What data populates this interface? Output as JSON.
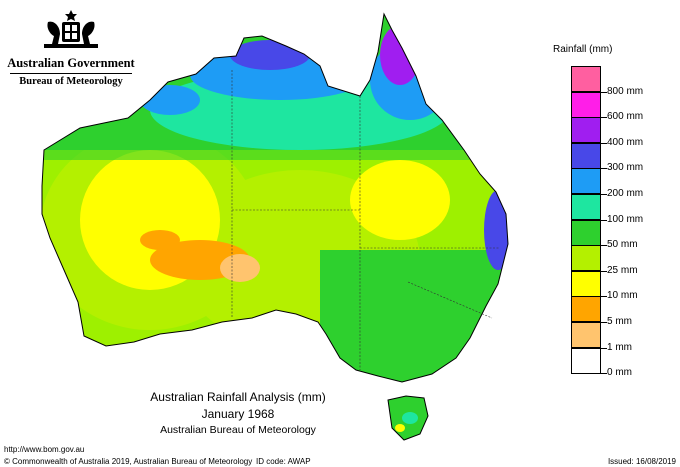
{
  "header": {
    "government": "Australian Government",
    "bureau": "Bureau of Meteorology"
  },
  "legend": {
    "title": "Rainfall (mm)",
    "bins": [
      {
        "label": "",
        "color": "#ff5fa0"
      },
      {
        "label": "800 mm",
        "color": "#ff1ee8"
      },
      {
        "label": "600 mm",
        "color": "#a01ef0"
      },
      {
        "label": "400 mm",
        "color": "#4848e8"
      },
      {
        "label": "300 mm",
        "color": "#1e9cf5"
      },
      {
        "label": "200 mm",
        "color": "#1ee6a0"
      },
      {
        "label": "100 mm",
        "color": "#2ed02e"
      },
      {
        "label": "50 mm",
        "color": "#b4f000"
      },
      {
        "label": "25 mm",
        "color": "#ffff00"
      },
      {
        "label": "10 mm",
        "color": "#ffa500"
      },
      {
        "label": "5 mm",
        "color": "#ffc46e"
      },
      {
        "label": "1 mm",
        "color": "#ffffff"
      },
      {
        "label": "0 mm",
        "color": null
      }
    ]
  },
  "map_title": {
    "line1": "Australian Rainfall Analysis (mm)",
    "line2": "January 1968",
    "line3": "Australian Bureau of Meteorology"
  },
  "footer": {
    "url": "http://www.bom.gov.au",
    "copyright": "© Commonwealth of Australia 2019, Australian Bureau of Meteorology",
    "id_code": "ID code: AWAP",
    "issued": "Issued: 16/08/2019"
  }
}
